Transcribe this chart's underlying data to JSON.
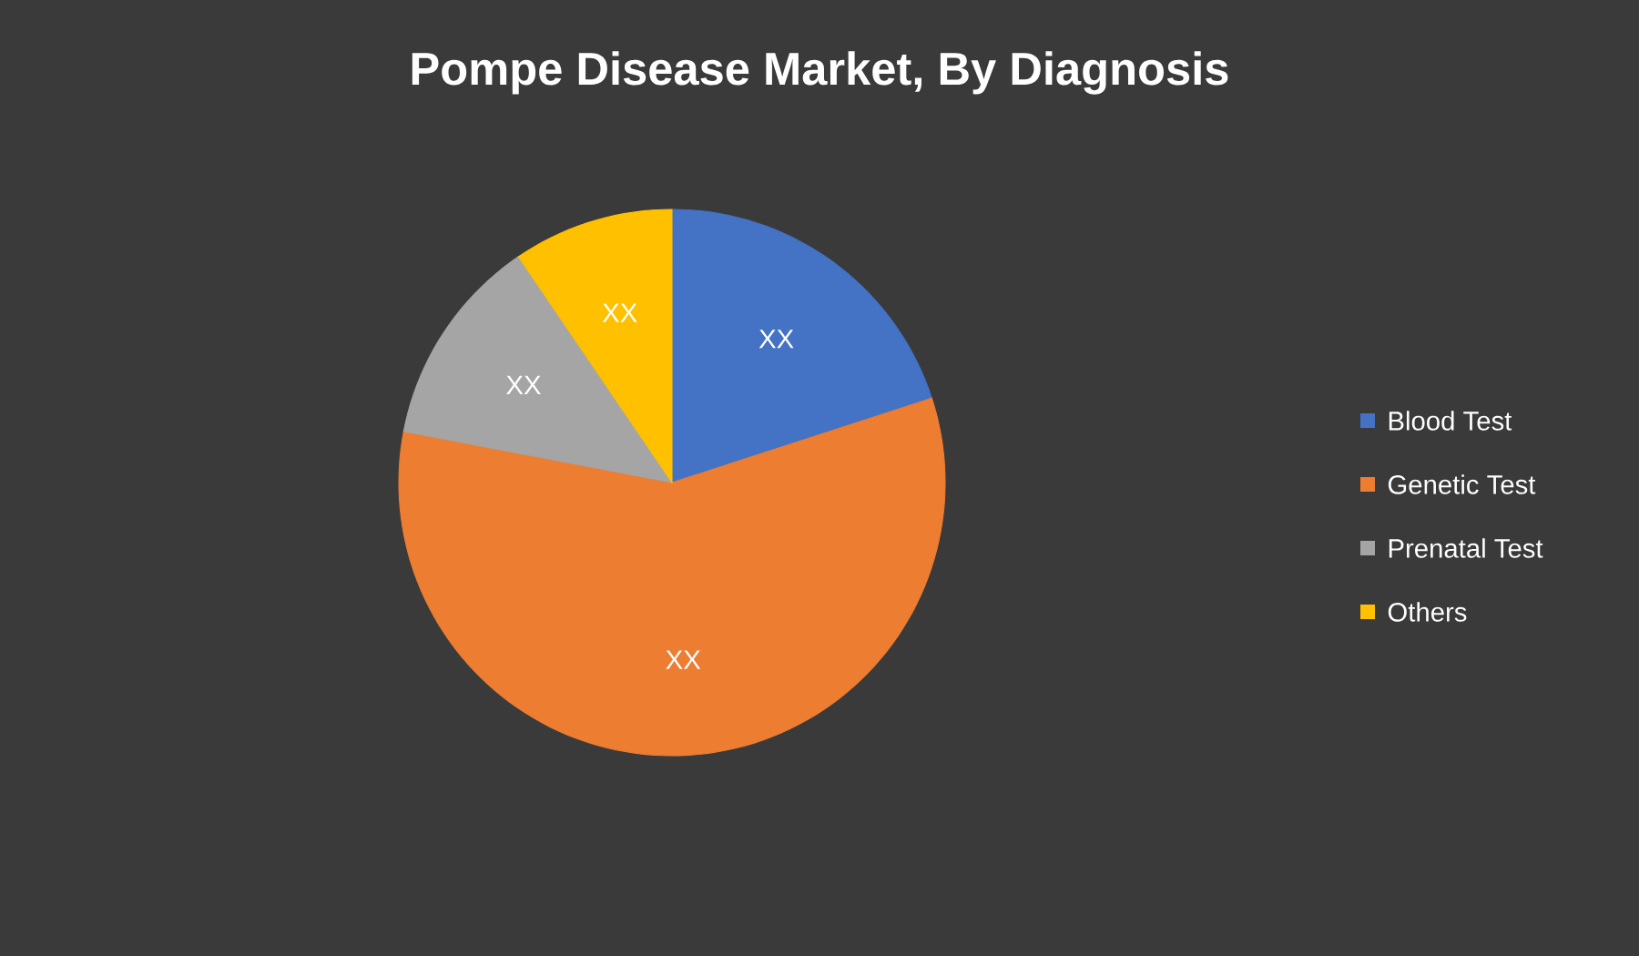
{
  "chart_data": {
    "type": "pie",
    "title": "Pompe Disease Market, By Diagnosis",
    "categories": [
      "Blood Test",
      "Genetic Test",
      "Prenatal Test",
      "Others"
    ],
    "values": [
      20,
      58,
      12.5,
      9.5
    ],
    "colors": [
      "#4472c4",
      "#ed7d31",
      "#a5a5a5",
      "#ffc000"
    ],
    "value_labels": [
      "XX",
      "XX",
      "XX",
      "XX"
    ],
    "legend": "right"
  }
}
